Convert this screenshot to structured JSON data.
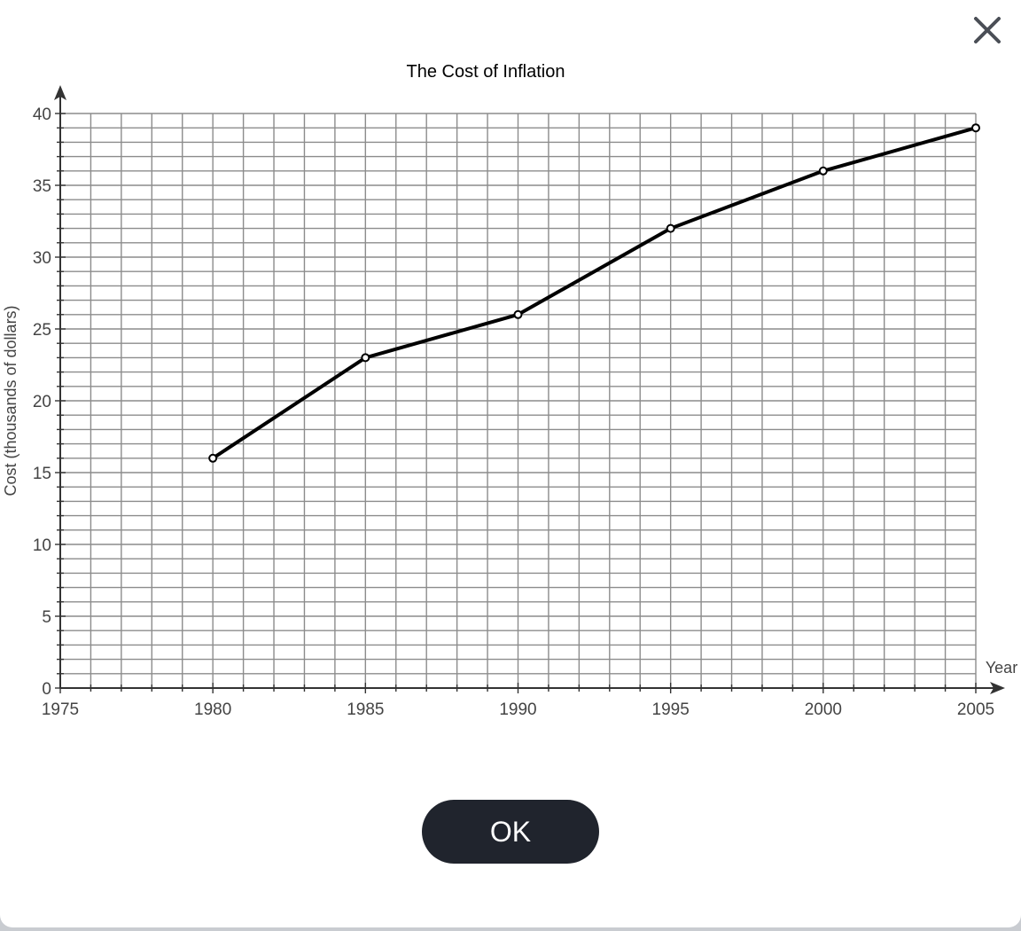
{
  "dialog": {
    "ok_label": "OK"
  },
  "chart_data": {
    "type": "line",
    "title": "The Cost of Inflation",
    "xlabel": "Year",
    "ylabel": "Cost (thousands of dollars)",
    "xlim": [
      1975,
      2005
    ],
    "ylim": [
      0,
      40
    ],
    "x_ticks": [
      1975,
      1980,
      1985,
      1990,
      1995,
      2000,
      2005
    ],
    "y_ticks": [
      0,
      5,
      10,
      15,
      20,
      25,
      30,
      35,
      40
    ],
    "grid": true,
    "x": [
      1980,
      1985,
      1990,
      1995,
      2000,
      2005
    ],
    "y": [
      16,
      23,
      26,
      32,
      36,
      39
    ],
    "colors": {
      "line": "#000000",
      "grid": "#8c8c8c",
      "axis": "#333333",
      "ok_button": "#20242d"
    }
  }
}
